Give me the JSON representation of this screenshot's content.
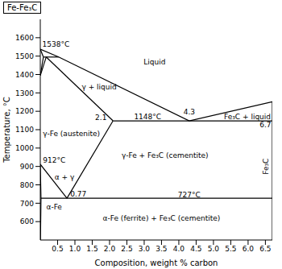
{
  "chart_data": {
    "type": "line",
    "title": "Fe-Fe₃C",
    "x_label": "Composition, weight % carbon",
    "y_label": "Temperature, °C",
    "xlim": [
      0,
      6.7
    ],
    "ylim": [
      500,
      1700
    ],
    "xticks": [
      0.5,
      {
        "value": 1,
        "label": "1.0"
      },
      1.5,
      {
        "value": 2,
        "label": "2.0"
      },
      2.5,
      {
        "value": 3,
        "label": "3.0"
      },
      3.5,
      {
        "value": 4,
        "label": "4.0"
      },
      4.5,
      {
        "value": 5,
        "label": "5.0"
      },
      5.5,
      {
        "value": 6,
        "label": "6.0"
      },
      6.5
    ],
    "yticks": [
      600,
      700,
      800,
      900,
      1000,
      1100,
      1200,
      1300,
      1400,
      1500,
      1600
    ],
    "grid": false,
    "series": [
      {
        "color": "#000000",
        "x": [
          0,
          0.53,
          4.3,
          6.7
        ],
        "values": [
          1538,
          1495,
          1148,
          1252
        ]
      },
      {
        "color": "#000000",
        "x": [
          0,
          0.09
        ],
        "values": [
          1538,
          1495
        ]
      },
      {
        "color": "#000000",
        "x": [
          0.09,
          0.53
        ],
        "values": [
          1495,
          1495
        ]
      },
      {
        "color": "#000000",
        "x": [
          0.09,
          0
        ],
        "values": [
          1495,
          1394
        ]
      },
      {
        "color": "#000000",
        "x": [
          0.17,
          0
        ],
        "values": [
          1495,
          1394
        ]
      },
      {
        "color": "#000000",
        "x": [
          0.17,
          2.1
        ],
        "values": [
          1495,
          1148
        ]
      },
      {
        "color": "#000000",
        "x": [
          2.1,
          6.7
        ],
        "values": [
          1148,
          1148
        ]
      },
      {
        "color": "#000000",
        "x": [
          2.1,
          0.77
        ],
        "values": [
          1148,
          727
        ]
      },
      {
        "color": "#000000",
        "x": [
          0,
          0.77
        ],
        "values": [
          912,
          727
        ]
      },
      {
        "color": "#000000",
        "x": [
          0.02,
          6.7
        ],
        "values": [
          727,
          727
        ]
      },
      {
        "color": "#000000",
        "x": [
          0,
          0.02,
          0.005
        ],
        "values": [
          912,
          727,
          500
        ]
      },
      {
        "color": "#000000",
        "x": [
          6.7,
          6.7
        ],
        "values": [
          500,
          1252
        ]
      }
    ],
    "annotations": [
      {
        "text": "1538°C",
        "x": 0.45,
        "y": 1565
      },
      {
        "text": "Liquid",
        "x": 3.3,
        "y": 1470
      },
      {
        "text": "γ + liquid",
        "x": 1.7,
        "y": 1330
      },
      {
        "text": "2.1",
        "x": 1.75,
        "y": 1165
      },
      {
        "text": "1148°C",
        "x": 3.1,
        "y": 1170
      },
      {
        "text": "4.3",
        "x": 4.3,
        "y": 1195
      },
      {
        "text": "Fe₃C + liquid",
        "x": 5.98,
        "y": 1172
      },
      {
        "text": "6.7",
        "x": 6.5,
        "y": 1125
      },
      {
        "text": "γ-Fe (austenite)",
        "x": 0.9,
        "y": 1080
      },
      {
        "text": "γ-Fe + Fe₃C (cementite)",
        "x": 3.6,
        "y": 960
      },
      {
        "text": "912°C",
        "x": 0.4,
        "y": 935
      },
      {
        "text": "α + γ",
        "x": 0.7,
        "y": 840
      },
      {
        "text": "0.77",
        "x": 1.1,
        "y": 750
      },
      {
        "text": "727°C",
        "x": 4.3,
        "y": 745
      },
      {
        "text": "α-Fe",
        "x": 0.4,
        "y": 680
      },
      {
        "text": "α-Fe (ferrite) + Fe₃C (cementite)",
        "x": 3.5,
        "y": 620
      }
    ],
    "side_label": {
      "text": "Fe₃C",
      "x": 6.52,
      "y": 900
    }
  }
}
